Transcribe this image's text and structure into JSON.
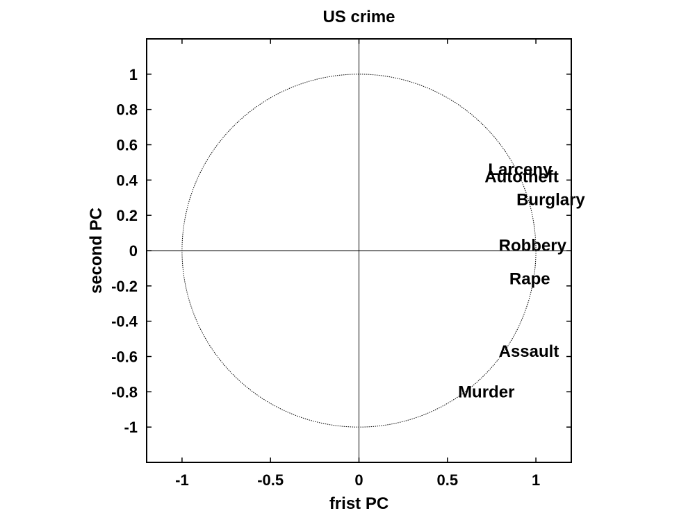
{
  "chart_data": {
    "type": "scatter",
    "title": "US crime",
    "xlabel": "frist PC",
    "ylabel": "second PC",
    "xlim": [
      -1.2,
      1.2
    ],
    "ylim": [
      -1.2,
      1.2
    ],
    "xticks": [
      -1,
      -0.5,
      0,
      0.5,
      1
    ],
    "xtick_labels": [
      "-1",
      "-0.5",
      "0",
      "0.5",
      "1"
    ],
    "yticks": [
      -1,
      -0.8,
      -0.6,
      -0.4,
      -0.2,
      0,
      0.2,
      0.4,
      0.6,
      0.8,
      1
    ],
    "ytick_labels": [
      "-1",
      "-0.8",
      "-0.6",
      "-0.4",
      "-0.2",
      "0",
      "0.2",
      "0.4",
      "0.6",
      "0.8",
      "1"
    ],
    "grid": false,
    "unit_circle": true,
    "points": [
      {
        "label": "Larceny",
        "x": 0.73,
        "y": 0.46
      },
      {
        "label": "Autotheft",
        "x": 0.71,
        "y": 0.42
      },
      {
        "label": "Burglary",
        "x": 0.89,
        "y": 0.29
      },
      {
        "label": "Robbery",
        "x": 0.79,
        "y": 0.03
      },
      {
        "label": "Rape",
        "x": 0.85,
        "y": -0.16
      },
      {
        "label": "Assault",
        "x": 0.79,
        "y": -0.57
      },
      {
        "label": "Murder",
        "x": 0.56,
        "y": -0.8
      }
    ]
  }
}
